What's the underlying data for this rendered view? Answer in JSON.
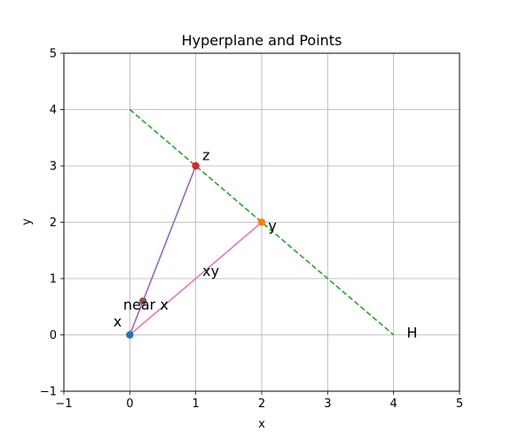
{
  "chart_data": {
    "type": "line",
    "title": "Hyperplane and Points",
    "xlabel": "x",
    "ylabel": "y",
    "xlim": [
      -1,
      5
    ],
    "ylim": [
      -1,
      5
    ],
    "xticks": [
      -1,
      0,
      1,
      2,
      3,
      4,
      5
    ],
    "yticks": [
      -1,
      0,
      1,
      2,
      3,
      4,
      5
    ],
    "grid": true,
    "hyperplane": {
      "points": [
        [
          0,
          4
        ],
        [
          4,
          0
        ]
      ],
      "color": "#2ca02c",
      "style": "dashed"
    },
    "segments": [
      {
        "from": [
          0,
          0
        ],
        "to": [
          2,
          2
        ],
        "color": "#e377c2"
      },
      {
        "from": [
          0,
          0
        ],
        "to": [
          1,
          3
        ],
        "color": "#9467bd"
      }
    ],
    "points": [
      {
        "x": 0,
        "y": 0,
        "color": "#1f77b4"
      },
      {
        "x": 2,
        "y": 2,
        "color": "#ff7f0e"
      },
      {
        "x": 1,
        "y": 3,
        "color": "#d62728"
      },
      {
        "x": 0.2,
        "y": 0.6,
        "color": "#8c564b"
      }
    ],
    "annotations": [
      {
        "text": "x",
        "x": -0.25,
        "y": 0.15
      },
      {
        "text": "y",
        "x": 2.1,
        "y": 1.85
      },
      {
        "text": "z",
        "x": 1.1,
        "y": 3.1
      },
      {
        "text": "xy",
        "x": 1.1,
        "y": 1.05
      },
      {
        "text": "near x",
        "x": -0.1,
        "y": 0.45
      },
      {
        "text": "H",
        "x": 4.2,
        "y": -0.05
      }
    ]
  }
}
